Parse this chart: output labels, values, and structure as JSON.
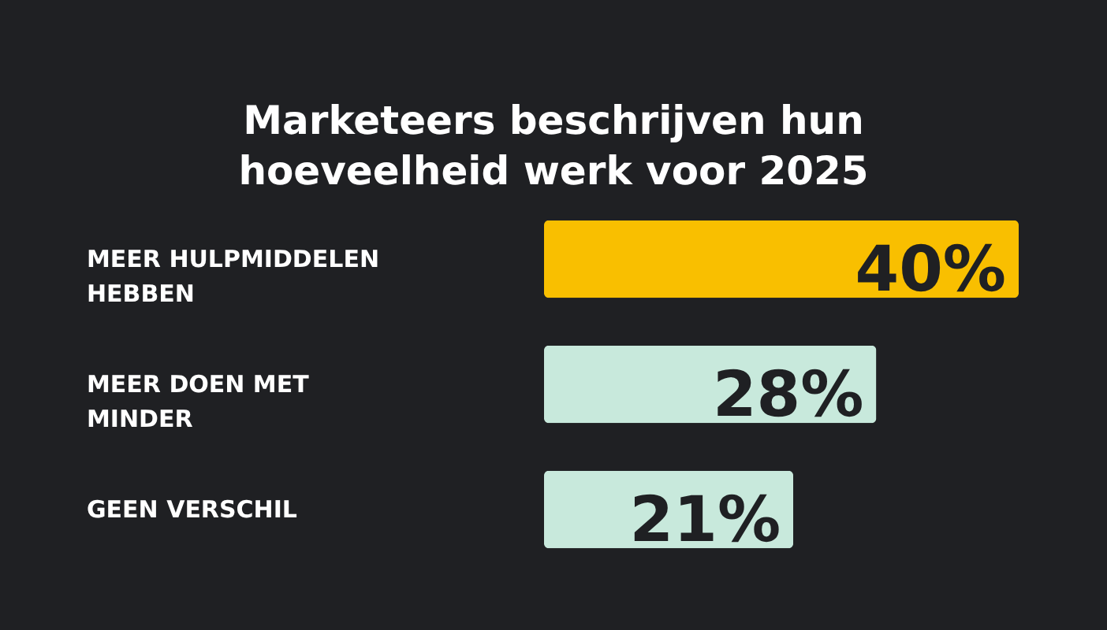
{
  "chart_data": {
    "type": "bar",
    "orientation": "horizontal",
    "title": "Marketeers beschrijven hun hoeveelheid werk voor 2025",
    "categories": [
      "MEER HULPMIDDELEN HEBBEN",
      "MEER DOEN MET MINDER",
      "GEEN VERSCHIL"
    ],
    "values": [
      40,
      28,
      21
    ],
    "colors": [
      "#f9bf00",
      "#c8e9dc",
      "#c8e9dc"
    ],
    "data_labels": true,
    "value_labels": [
      "40%",
      "28%",
      "21%"
    ]
  }
}
